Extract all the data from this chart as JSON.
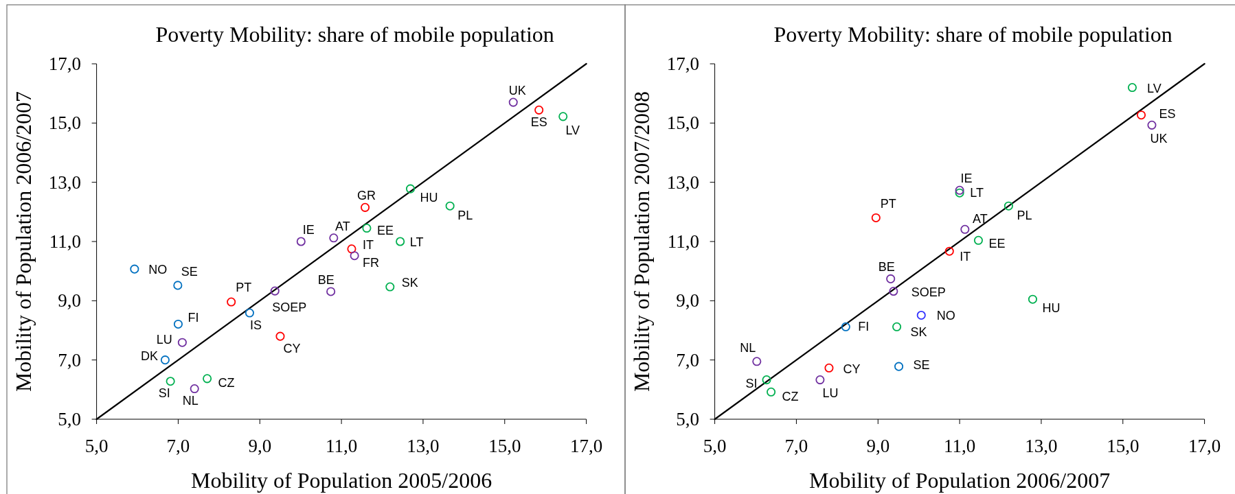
{
  "chart_data": [
    {
      "type": "scatter",
      "title": "Poverty Mobility: share of mobile population",
      "xlabel": "Mobility of Population 2005/2006",
      "ylabel": "Mobility of Population 2006/2007",
      "xlim": [
        5,
        17
      ],
      "ylim": [
        5,
        17
      ],
      "xticks": [
        {
          "value": 5,
          "label": "5,0"
        },
        {
          "value": 7,
          "label": "7,0"
        },
        {
          "value": 9,
          "label": "9,0"
        },
        {
          "value": 11,
          "label": "11,0"
        },
        {
          "value": 13,
          "label": "13,0"
        },
        {
          "value": 15,
          "label": "15,0"
        },
        {
          "value": 17,
          "label": "17,0"
        }
      ],
      "yticks": [
        {
          "value": 5,
          "label": "5,0"
        },
        {
          "value": 7,
          "label": "7,0"
        },
        {
          "value": 9,
          "label": "9,0"
        },
        {
          "value": 11,
          "label": "11,0"
        },
        {
          "value": 13,
          "label": "13,0"
        },
        {
          "value": 15,
          "label": "15,0"
        },
        {
          "value": 17,
          "label": "17,0"
        }
      ],
      "marker": "circle",
      "series": [
        {
          "type": "line",
          "color": "#000000",
          "marker": "none",
          "x": [
            5,
            17
          ],
          "values": [
            5,
            17
          ]
        },
        {
          "color": "#ff0000",
          "x": [
            15.84,
            11.58,
            11.25,
            8.3,
            9.5
          ],
          "values": [
            15.44,
            12.15,
            10.75,
            8.96,
            7.8
          ],
          "value_labels": [
            "ES",
            "GR",
            "IT",
            "PT",
            "CY"
          ]
        },
        {
          "color": "#00b050",
          "x": [
            16.43,
            12.69,
            13.66,
            11.62,
            12.44,
            12.19,
            6.81,
            7.71
          ],
          "values": [
            15.22,
            12.78,
            12.2,
            11.45,
            11.0,
            9.47,
            6.28,
            6.37
          ],
          "value_labels": [
            "LV",
            "HU",
            "PL",
            "EE",
            "LT",
            "SK",
            "SI",
            "CZ"
          ]
        },
        {
          "color": "#7030a0",
          "x": [
            15.21,
            10.01,
            10.81,
            11.32,
            10.74,
            9.37,
            7.1,
            7.4
          ],
          "values": [
            15.7,
            11.0,
            11.12,
            10.52,
            9.31,
            9.33,
            7.59,
            6.03
          ],
          "value_labels": [
            "UK",
            "IE",
            "AT",
            "FR",
            "BE",
            "SOEP",
            "LU",
            "NL"
          ]
        },
        {
          "color": "#0070c0",
          "x": [
            5.93,
            6.99,
            8.75,
            7.0,
            6.68
          ],
          "values": [
            10.07,
            9.52,
            8.59,
            8.21,
            7.0
          ],
          "value_labels": [
            "NO",
            "SE",
            "IS",
            "FI",
            "DK"
          ]
        }
      ]
    },
    {
      "type": "scatter",
      "title": "Poverty Mobility: share of mobile population",
      "xlabel": "Mobility of Population 2006/2007",
      "ylabel": "Mobility of Population 2007/2008",
      "xlim": [
        5,
        17
      ],
      "ylim": [
        5,
        17
      ],
      "xticks": [
        {
          "value": 5,
          "label": "5,0"
        },
        {
          "value": 7,
          "label": "7,0"
        },
        {
          "value": 9,
          "label": "9,0"
        },
        {
          "value": 11,
          "label": "11,0"
        },
        {
          "value": 13,
          "label": "13,0"
        },
        {
          "value": 15,
          "label": "15,0"
        },
        {
          "value": 17,
          "label": "17,0"
        }
      ],
      "yticks": [
        {
          "value": 5,
          "label": "5,0"
        },
        {
          "value": 7,
          "label": "7,0"
        },
        {
          "value": 9,
          "label": "9,0"
        },
        {
          "value": 11,
          "label": "11,0"
        },
        {
          "value": 13,
          "label": "13,0"
        },
        {
          "value": 15,
          "label": "15,0"
        },
        {
          "value": 17,
          "label": "17,0"
        }
      ],
      "marker": "circle",
      "series": [
        {
          "type": "line",
          "color": "#000000",
          "marker": "none",
          "x": [
            5,
            17
          ],
          "values": [
            5,
            17
          ]
        },
        {
          "color": "#ff0000",
          "x": [
            15.45,
            8.95,
            10.75,
            7.8
          ],
          "values": [
            15.27,
            11.8,
            10.67,
            6.73
          ],
          "value_labels": [
            "ES",
            "PT",
            "IT",
            "CY"
          ]
        },
        {
          "color": "#00b050",
          "x": [
            15.23,
            11.0,
            12.2,
            11.46,
            12.79,
            9.46,
            6.27,
            6.38
          ],
          "values": [
            16.2,
            12.64,
            12.2,
            11.04,
            9.05,
            8.12,
            6.33,
            5.92
          ],
          "value_labels": [
            "LV",
            "LT",
            "PL",
            "EE",
            "HU",
            "SK",
            "SI",
            "CZ"
          ]
        },
        {
          "color": "#7030a0",
          "x": [
            15.71,
            11.0,
            11.13,
            9.31,
            9.38,
            6.03,
            7.58
          ],
          "values": [
            14.93,
            12.73,
            11.41,
            9.74,
            9.32,
            6.95,
            6.33
          ],
          "value_labels": [
            "UK",
            "IE",
            "AT",
            "BE",
            "SOEP",
            "NL",
            "LU"
          ]
        },
        {
          "color": "#0070c0",
          "x": [
            8.21,
            9.51
          ],
          "values": [
            8.12,
            6.78
          ],
          "value_labels": [
            "FI",
            "SE"
          ]
        },
        {
          "color": "#3333ff",
          "x": [
            10.06
          ],
          "values": [
            8.51
          ],
          "value_labels": [
            "NO"
          ]
        }
      ]
    }
  ]
}
